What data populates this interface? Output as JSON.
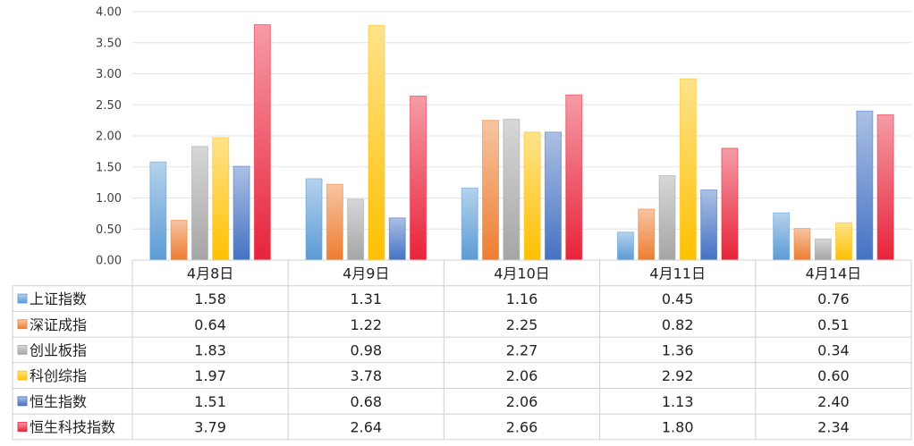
{
  "chart_data": {
    "type": "bar",
    "title": "",
    "xlabel": "",
    "ylabel": "",
    "ylim": [
      0,
      4.0
    ],
    "yticks": [
      "0.00",
      "0.50",
      "1.00",
      "1.50",
      "2.00",
      "2.50",
      "3.00",
      "3.50",
      "4.00"
    ],
    "grid": true,
    "legend": "data-table",
    "categories": [
      "4月8日",
      "4月9日",
      "4月10日",
      "4月11日",
      "4月14日"
    ],
    "series": [
      {
        "name": "上证指数",
        "color": "#5b9bd5",
        "values": [
          1.58,
          1.31,
          1.16,
          0.45,
          0.76
        ],
        "labels": [
          "1.58",
          "1.31",
          "1.16",
          "0.45",
          "0.76"
        ]
      },
      {
        "name": "深证成指",
        "color": "#ed7d31",
        "values": [
          0.64,
          1.22,
          2.25,
          0.82,
          0.51
        ],
        "labels": [
          "0.64",
          "1.22",
          "2.25",
          "0.82",
          "0.51"
        ]
      },
      {
        "name": "创业板指",
        "color": "#a5a5a5",
        "values": [
          1.83,
          0.98,
          2.27,
          1.36,
          0.34
        ],
        "labels": [
          "1.83",
          "0.98",
          "2.27",
          "1.36",
          "0.34"
        ]
      },
      {
        "name": "科创综指",
        "color": "#ffc000",
        "values": [
          1.97,
          3.78,
          2.06,
          2.92,
          0.6
        ],
        "labels": [
          "1.97",
          "3.78",
          "2.06",
          "2.92",
          "0.60"
        ]
      },
      {
        "name": "恒生指数",
        "color": "#4472c4",
        "values": [
          1.51,
          0.68,
          2.06,
          1.13,
          2.4
        ],
        "labels": [
          "1.51",
          "0.68",
          "2.06",
          "1.13",
          "2.40"
        ]
      },
      {
        "name": "恒生科技指数",
        "color": "#e8233a",
        "values": [
          3.79,
          2.64,
          2.66,
          1.8,
          2.34
        ],
        "labels": [
          "3.79",
          "2.64",
          "2.66",
          "1.80",
          "2.34"
        ]
      }
    ]
  }
}
